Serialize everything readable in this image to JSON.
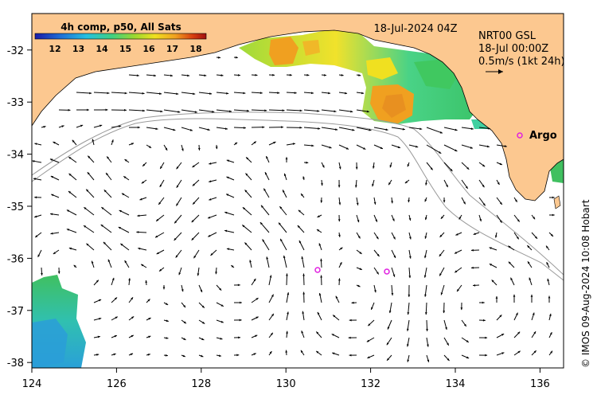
{
  "map": {
    "colorbar": {
      "title": "4h comp, p50, All Sats",
      "ticks": [
        "12",
        "13",
        "14",
        "15",
        "16",
        "17",
        "18"
      ],
      "colors": [
        "#1a1aa8",
        "#1f6fd6",
        "#25c0e0",
        "#40d080",
        "#9ad830",
        "#f0e020",
        "#f0a020",
        "#d84010",
        "#a01010"
      ]
    },
    "date_label": "18-Jul-2024 04Z",
    "info": {
      "line1": "NRT00 GSL",
      "line2": "18-Jul 00:00Z",
      "line3": "0.5m/s (1kt 24h)"
    },
    "argo_label": "Argo",
    "credit": "© IMOS 09-Aug-2024 10:08 Hobart",
    "lon_ticks": [
      "124",
      "126",
      "128",
      "130",
      "132",
      "134",
      "136"
    ],
    "lat_ticks": [
      "-32",
      "-33",
      "-34",
      "-35",
      "-36",
      "-37",
      "-38"
    ],
    "colors": {
      "land": "#fcc890",
      "ocean": "#ffffff",
      "argo": "#e020e0",
      "bathymetry": "#999999"
    }
  }
}
